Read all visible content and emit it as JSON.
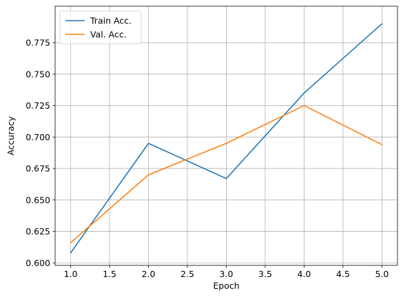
{
  "chart_data": {
    "type": "line",
    "title": "",
    "xlabel": "Epoch",
    "ylabel": "Accuracy",
    "xlim": [
      0.8,
      5.2
    ],
    "ylim": [
      0.598,
      0.804
    ],
    "xticks": [
      1.0,
      1.5,
      2.0,
      2.5,
      3.0,
      3.5,
      4.0,
      4.5,
      5.0
    ],
    "xtick_labels": [
      "1.0",
      "1.5",
      "2.0",
      "2.5",
      "3.0",
      "3.5",
      "4.0",
      "4.5",
      "5.0"
    ],
    "yticks": [
      0.6,
      0.625,
      0.65,
      0.675,
      0.7,
      0.725,
      0.75,
      0.775
    ],
    "ytick_labels": [
      "0.600",
      "0.625",
      "0.650",
      "0.675",
      "0.700",
      "0.725",
      "0.750",
      "0.775"
    ],
    "grid": true,
    "legend_position": "top-left",
    "x": [
      1,
      2,
      3,
      4,
      5
    ],
    "series": [
      {
        "name": "Train Acc.",
        "color": "#1f77b4",
        "values": [
          0.608,
          0.695,
          0.667,
          0.735,
          0.79
        ]
      },
      {
        "name": "Val. Acc.",
        "color": "#ff7f0e",
        "values": [
          0.616,
          0.67,
          0.695,
          0.725,
          0.694
        ]
      }
    ]
  }
}
